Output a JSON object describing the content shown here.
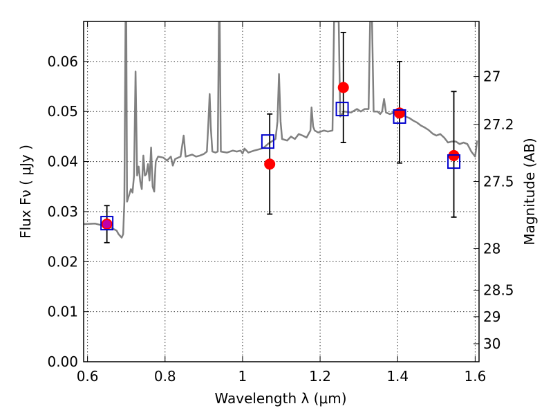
{
  "chart_data": {
    "type": "scatter",
    "xlabel": "Wavelength  λ (μm)",
    "ylabel": "Flux  Fν  ( μJy )",
    "y2label": "Magnitude (AB)",
    "xlim": [
      0.59,
      1.61
    ],
    "ylim": [
      0.0,
      0.068
    ],
    "grid": true,
    "x_ticks": [
      {
        "value": 0.6,
        "label": "0.6"
      },
      {
        "value": 0.8,
        "label": "0.8"
      },
      {
        "value": 1.0,
        "label": "1"
      },
      {
        "value": 1.2,
        "label": "1.2"
      },
      {
        "value": 1.4,
        "label": "1.4"
      },
      {
        "value": 1.6,
        "label": "1.6"
      }
    ],
    "y_ticks": [
      {
        "value": 0.0,
        "label": "0.00"
      },
      {
        "value": 0.01,
        "label": "0.01"
      },
      {
        "value": 0.02,
        "label": "0.02"
      },
      {
        "value": 0.03,
        "label": "0.03"
      },
      {
        "value": 0.04,
        "label": "0.04"
      },
      {
        "value": 0.05,
        "label": "0.05"
      },
      {
        "value": 0.06,
        "label": "0.06"
      }
    ],
    "y2_ticks": [
      {
        "flux": 0.057,
        "label": "27"
      },
      {
        "flux": 0.0474,
        "label": "27.2"
      },
      {
        "flux": 0.036,
        "label": "27.5"
      },
      {
        "flux": 0.0226,
        "label": "28"
      },
      {
        "flux": 0.0143,
        "label": "28.5"
      },
      {
        "flux": 0.009,
        "label": "29"
      },
      {
        "flux": 0.0036,
        "label": "30"
      }
    ],
    "series": [
      {
        "kind": "observed",
        "color": "#ff0000",
        "points": [
          {
            "x": 0.65,
            "y": 0.0275,
            "yerr_low": 0.0037,
            "yerr_high": 0.0037
          },
          {
            "x": 1.07,
            "y": 0.0395,
            "yerr_low": 0.01,
            "yerr_high": 0.01
          },
          {
            "x": 1.26,
            "y": 0.0548,
            "yerr_low": 0.011,
            "yerr_high": 0.011
          },
          {
            "x": 1.405,
            "y": 0.0497,
            "yerr_low": 0.01,
            "yerr_high": 0.0103
          },
          {
            "x": 1.545,
            "y": 0.0412,
            "yerr_low": 0.0123,
            "yerr_high": 0.0128
          }
        ]
      },
      {
        "kind": "model",
        "color": "#0000cc",
        "points": [
          {
            "x": 0.65,
            "y": 0.0277
          },
          {
            "x": 1.065,
            "y": 0.044
          },
          {
            "x": 1.257,
            "y": 0.0505
          },
          {
            "x": 1.405,
            "y": 0.049
          },
          {
            "x": 1.545,
            "y": 0.04
          }
        ]
      },
      {
        "kind": "spectrum",
        "color": "#808080",
        "points": [
          [
            0.59,
            0.0275
          ],
          [
            0.62,
            0.0276
          ],
          [
            0.64,
            0.0272
          ],
          [
            0.66,
            0.0268
          ],
          [
            0.675,
            0.0262
          ],
          [
            0.68,
            0.0255
          ],
          [
            0.688,
            0.0248
          ],
          [
            0.692,
            0.0255
          ],
          [
            0.695,
            0.032
          ],
          [
            0.698,
            0.068
          ],
          [
            0.7,
            0.068
          ],
          [
            0.702,
            0.032
          ],
          [
            0.708,
            0.0335
          ],
          [
            0.712,
            0.0345
          ],
          [
            0.716,
            0.0338
          ],
          [
            0.72,
            0.0372
          ],
          [
            0.724,
            0.058
          ],
          [
            0.728,
            0.0372
          ],
          [
            0.732,
            0.039
          ],
          [
            0.736,
            0.036
          ],
          [
            0.74,
            0.0345
          ],
          [
            0.744,
            0.0412
          ],
          [
            0.748,
            0.0372
          ],
          [
            0.752,
            0.0375
          ],
          [
            0.756,
            0.0395
          ],
          [
            0.76,
            0.0362
          ],
          [
            0.764,
            0.0428
          ],
          [
            0.768,
            0.035
          ],
          [
            0.772,
            0.034
          ],
          [
            0.776,
            0.04
          ],
          [
            0.782,
            0.041
          ],
          [
            0.795,
            0.0408
          ],
          [
            0.805,
            0.0402
          ],
          [
            0.815,
            0.041
          ],
          [
            0.82,
            0.0392
          ],
          [
            0.826,
            0.0405
          ],
          [
            0.84,
            0.041
          ],
          [
            0.848,
            0.0452
          ],
          [
            0.853,
            0.041
          ],
          [
            0.87,
            0.0414
          ],
          [
            0.88,
            0.041
          ],
          [
            0.89,
            0.0412
          ],
          [
            0.9,
            0.0415
          ],
          [
            0.908,
            0.042
          ],
          [
            0.912,
            0.0482
          ],
          [
            0.915,
            0.0535
          ],
          [
            0.918,
            0.047
          ],
          [
            0.922,
            0.042
          ],
          [
            0.93,
            0.0418
          ],
          [
            0.936,
            0.042
          ],
          [
            0.939,
            0.068
          ],
          [
            0.941,
            0.068
          ],
          [
            0.944,
            0.042
          ],
          [
            0.96,
            0.0418
          ],
          [
            0.975,
            0.0422
          ],
          [
            0.985,
            0.042
          ],
          [
            0.995,
            0.0422
          ],
          [
            1.0,
            0.0416
          ],
          [
            1.005,
            0.0426
          ],
          [
            1.015,
            0.0418
          ],
          [
            1.03,
            0.0422
          ],
          [
            1.045,
            0.0425
          ],
          [
            1.055,
            0.0428
          ],
          [
            1.065,
            0.0435
          ],
          [
            1.075,
            0.044
          ],
          [
            1.085,
            0.0445
          ],
          [
            1.09,
            0.048
          ],
          [
            1.094,
            0.0575
          ],
          [
            1.098,
            0.048
          ],
          [
            1.102,
            0.0445
          ],
          [
            1.115,
            0.0442
          ],
          [
            1.125,
            0.045
          ],
          [
            1.135,
            0.0445
          ],
          [
            1.145,
            0.0455
          ],
          [
            1.155,
            0.0452
          ],
          [
            1.165,
            0.0448
          ],
          [
            1.175,
            0.0462
          ],
          [
            1.178,
            0.0508
          ],
          [
            1.182,
            0.047
          ],
          [
            1.186,
            0.0462
          ],
          [
            1.195,
            0.0458
          ],
          [
            1.21,
            0.0462
          ],
          [
            1.22,
            0.046
          ],
          [
            1.232,
            0.0462
          ],
          [
            1.236,
            0.068
          ],
          [
            1.248,
            0.068
          ],
          [
            1.252,
            0.049
          ],
          [
            1.262,
            0.05
          ],
          [
            1.28,
            0.0498
          ],
          [
            1.295,
            0.0505
          ],
          [
            1.305,
            0.05
          ],
          [
            1.315,
            0.0505
          ],
          [
            1.325,
            0.0505
          ],
          [
            1.329,
            0.068
          ],
          [
            1.334,
            0.068
          ],
          [
            1.338,
            0.05
          ],
          [
            1.348,
            0.05
          ],
          [
            1.355,
            0.0495
          ],
          [
            1.36,
            0.05
          ],
          [
            1.365,
            0.0525
          ],
          [
            1.37,
            0.0498
          ],
          [
            1.38,
            0.0495
          ],
          [
            1.39,
            0.0498
          ],
          [
            1.4,
            0.0497
          ],
          [
            1.41,
            0.0495
          ],
          [
            1.42,
            0.049
          ],
          [
            1.43,
            0.0487
          ],
          [
            1.44,
            0.0482
          ],
          [
            1.45,
            0.0478
          ],
          [
            1.46,
            0.0472
          ],
          [
            1.47,
            0.0468
          ],
          [
            1.48,
            0.0463
          ],
          [
            1.49,
            0.0456
          ],
          [
            1.5,
            0.0452
          ],
          [
            1.51,
            0.0455
          ],
          [
            1.52,
            0.0448
          ],
          [
            1.53,
            0.0438
          ],
          [
            1.54,
            0.044
          ],
          [
            1.55,
            0.044
          ],
          [
            1.56,
            0.0435
          ],
          [
            1.57,
            0.0438
          ],
          [
            1.58,
            0.0435
          ],
          [
            1.59,
            0.042
          ],
          [
            1.6,
            0.041
          ],
          [
            1.605,
            0.0442
          ]
        ]
      }
    ]
  }
}
